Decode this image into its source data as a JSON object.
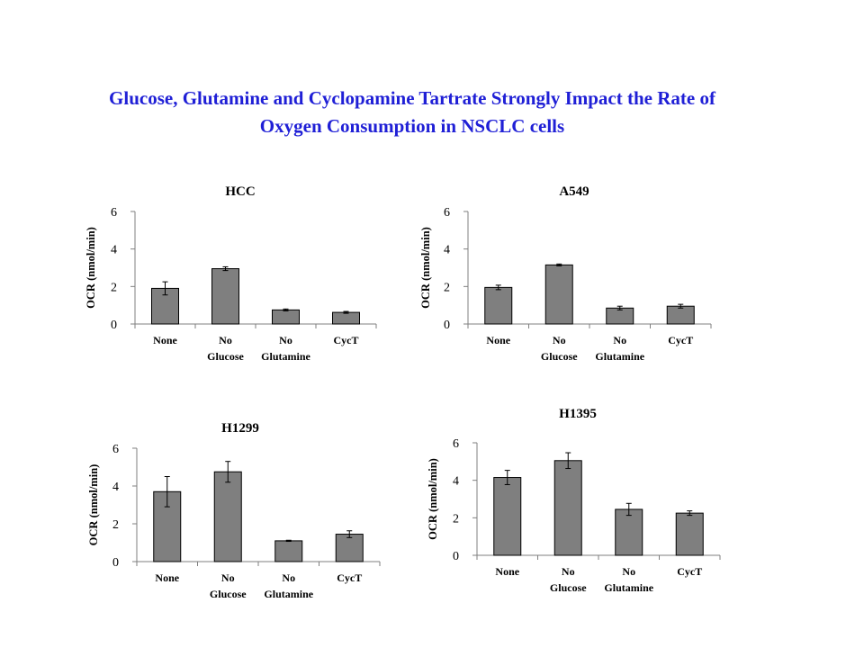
{
  "title": {
    "line1": "Glucose, Glutamine and Cyclopamine Tartrate Strongly Impact the Rate of",
    "line2": "Oxygen Consumption in NSCLC cells"
  },
  "colors": {
    "title": "#1f1fd6",
    "bar": "#7f7f7f",
    "axis": "#7f7f7f"
  },
  "chart_data": [
    {
      "type": "bar",
      "title": "HCC",
      "ylabel": "OCR (nmol/min)",
      "ylim": [
        0,
        6
      ],
      "yticks": [
        "0",
        "2",
        "4",
        "6"
      ],
      "categories": [
        [
          "None"
        ],
        [
          "No",
          "Glucose"
        ],
        [
          "No",
          "Glutamine"
        ],
        [
          "CycT"
        ]
      ],
      "values": [
        1.9,
        2.95,
        0.75,
        0.62
      ],
      "errors": [
        0.35,
        0.1,
        0.05,
        0.05
      ]
    },
    {
      "type": "bar",
      "title": "A549",
      "ylabel": "OCR (nmol/min)",
      "ylim": [
        0,
        6
      ],
      "yticks": [
        "0",
        "2",
        "4",
        "6"
      ],
      "categories": [
        [
          "None"
        ],
        [
          "No",
          "Glucose"
        ],
        [
          "No",
          "Glutamine"
        ],
        [
          "CycT"
        ]
      ],
      "values": [
        1.95,
        3.15,
        0.85,
        0.95
      ],
      "errors": [
        0.12,
        0.05,
        0.1,
        0.1
      ]
    },
    {
      "type": "bar",
      "title": "H1299",
      "ylabel": "OCR (nmol/min)",
      "ylim": [
        0,
        6
      ],
      "yticks": [
        "0",
        "2",
        "4",
        "6"
      ],
      "categories": [
        [
          "None"
        ],
        [
          "No",
          "Glucose"
        ],
        [
          "No",
          "Glutamine"
        ],
        [
          "CycT"
        ]
      ],
      "values": [
        3.7,
        4.75,
        1.1,
        1.45
      ],
      "errors": [
        0.8,
        0.55,
        0.03,
        0.18
      ]
    },
    {
      "type": "bar",
      "title": "H1395",
      "ylabel": "OCR (nmol/min)",
      "ylim": [
        0,
        6
      ],
      "yticks": [
        "0",
        "2",
        "4",
        "6"
      ],
      "categories": [
        [
          "None"
        ],
        [
          "No",
          "Glucose"
        ],
        [
          "No",
          "Glutamine"
        ],
        [
          "CycT"
        ]
      ],
      "values": [
        4.15,
        5.05,
        2.45,
        2.25
      ],
      "errors": [
        0.38,
        0.42,
        0.32,
        0.12
      ]
    }
  ]
}
